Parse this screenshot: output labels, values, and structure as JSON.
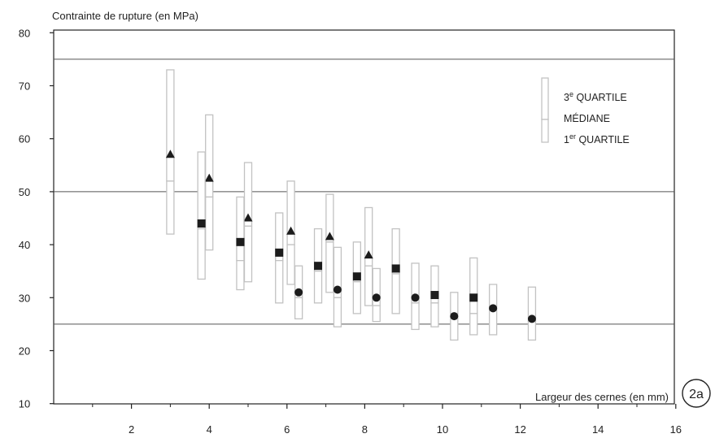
{
  "chart_data": {
    "type": "boxplot",
    "title": "",
    "ylabel": "Contrainte de rupture (en MPa)",
    "xlabel": "Largeur des cernes (en mm)",
    "figure_label": "2a",
    "xlim": [
      0,
      16
    ],
    "ylim": [
      8,
      80
    ],
    "x_ticks": [
      2,
      4,
      6,
      8,
      10,
      12,
      14,
      16
    ],
    "x_minor_ticks": [
      1,
      3,
      5,
      7,
      9,
      11,
      13,
      15
    ],
    "y_ticks": [
      10,
      20,
      30,
      40,
      50,
      60,
      70,
      80
    ],
    "reference_lines": [
      25,
      50,
      75
    ],
    "legend": {
      "q3": "3e QUARTILE",
      "q3_main": "3",
      "q3_sup": "e",
      "q3_rest": " QUARTILE",
      "median": "MÉDIANE",
      "q1": "1er QUARTILE",
      "q1_main": "1",
      "q1_sup": "er",
      "q1_rest": " QUARTILE",
      "position": "top-right"
    },
    "series": [
      {
        "marker": "triangle",
        "boxes": [
          {
            "x": 3.0,
            "q1": 42,
            "median": 52,
            "q3": 73,
            "mean": 57
          },
          {
            "x": 4.0,
            "q1": 39,
            "median": 49,
            "q3": 64.5,
            "mean": 52.5
          },
          {
            "x": 5.0,
            "q1": 33,
            "median": 43.5,
            "q3": 55.5,
            "mean": 45
          },
          {
            "x": 6.1,
            "q1": 32.5,
            "median": 40,
            "q3": 52,
            "mean": 42.5
          },
          {
            "x": 7.1,
            "q1": 31,
            "median": 40.5,
            "q3": 49.5,
            "mean": 41.5
          },
          {
            "x": 8.1,
            "q1": 28.5,
            "median": 36,
            "q3": 47,
            "mean": 38
          }
        ]
      },
      {
        "marker": "square",
        "boxes": [
          {
            "x": 3.8,
            "q1": 33.5,
            "median": 43,
            "q3": 57.5,
            "mean": 44
          },
          {
            "x": 4.8,
            "q1": 31.5,
            "median": 37,
            "q3": 49,
            "mean": 40.5
          },
          {
            "x": 5.8,
            "q1": 29,
            "median": 37,
            "q3": 46,
            "mean": 38.5
          },
          {
            "x": 6.8,
            "q1": 29,
            "median": 35,
            "q3": 43,
            "mean": 36
          },
          {
            "x": 7.8,
            "q1": 27,
            "median": 33,
            "q3": 40.5,
            "mean": 34
          },
          {
            "x": 8.8,
            "q1": 27,
            "median": 34.5,
            "q3": 43,
            "mean": 35.5
          },
          {
            "x": 9.8,
            "q1": 24.5,
            "median": 29,
            "q3": 36,
            "mean": 30.5
          },
          {
            "x": 10.8,
            "q1": 23,
            "median": 27,
            "q3": 37.5,
            "mean": 30
          }
        ]
      },
      {
        "marker": "circle",
        "boxes": [
          {
            "x": 6.3,
            "q1": 26,
            "median": 30,
            "q3": 36,
            "mean": 31
          },
          {
            "x": 7.3,
            "q1": 24.5,
            "median": 30,
            "q3": 39.5,
            "mean": 31.5
          },
          {
            "x": 8.3,
            "q1": 25.5,
            "median": 28.5,
            "q3": 35.5,
            "mean": 30
          },
          {
            "x": 9.3,
            "q1": 24,
            "median": 29,
            "q3": 36.5,
            "mean": 30
          },
          {
            "x": 10.3,
            "q1": 22,
            "median": 27,
            "q3": 31,
            "mean": 26.5
          },
          {
            "x": 11.3,
            "q1": 23,
            "median": 28,
            "q3": 32.5,
            "mean": 28
          },
          {
            "x": 12.3,
            "q1": 22,
            "median": 25.5,
            "q3": 32,
            "mean": 26
          }
        ]
      }
    ],
    "colors": {
      "box_stroke": "#c2c2c2",
      "marker": "#1c1c1c",
      "axis": "#222222",
      "reference_line": "#555555"
    }
  }
}
